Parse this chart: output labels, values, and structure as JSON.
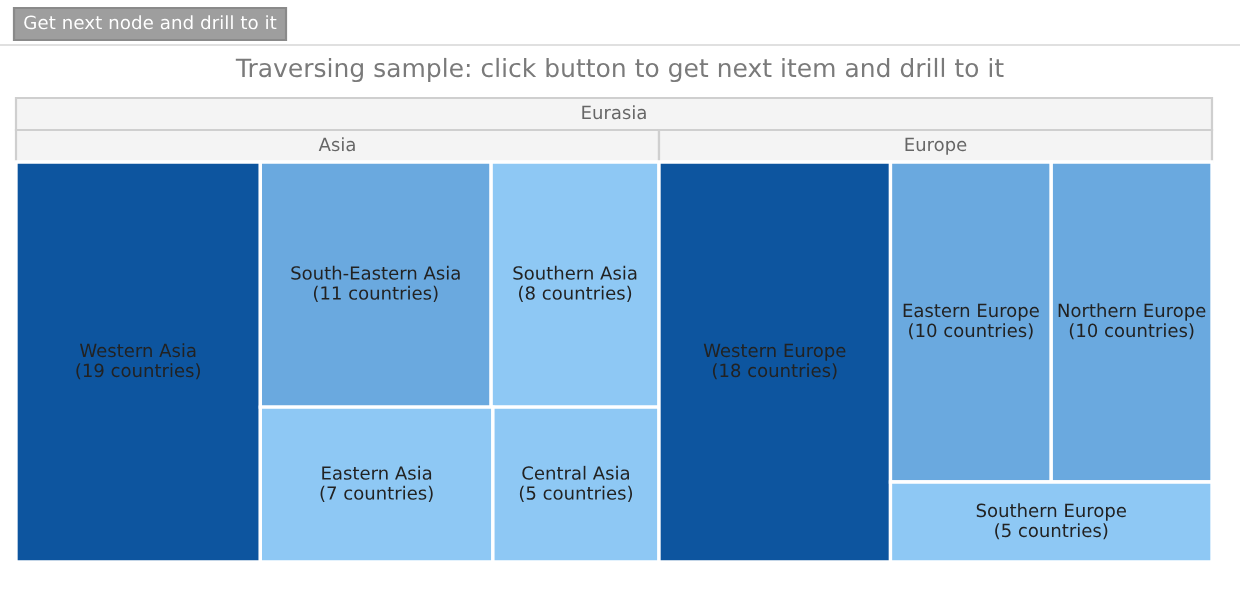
{
  "chart_data": {
    "type": "other",
    "title": "Traversing sample: click button to get next item and drill to it",
    "subtitle": "Eurasia",
    "annotations": [
      "Get next node and drill to it"
    ],
    "categories": [
      "Western Asia",
      "South-Eastern Asia",
      "Southern Asia",
      "Eastern Asia",
      "Central Asia",
      "Western Europe",
      "Eastern Europe",
      "Northern Europe",
      "Southern Europe"
    ],
    "series": [
      {
        "name": "Asia",
        "values": [
          19,
          11,
          8,
          7,
          5,
          null,
          null,
          null,
          null
        ],
        "value_labels": [
          "(19 countries)",
          "(11 countries)",
          "(8 countries)",
          "(7 countries)",
          "(5 countries)",
          null,
          null,
          null,
          null
        ],
        "colors": [
          "#0d559f",
          "#6aa9df",
          "#8ec8f4",
          "#8ec8f4",
          "#8ec8f4",
          null,
          null,
          null,
          null
        ]
      },
      {
        "name": "Europe",
        "values": [
          null,
          null,
          null,
          null,
          null,
          18,
          10,
          10,
          5
        ],
        "value_labels": [
          null,
          null,
          null,
          null,
          null,
          "(18 countries)",
          "(10 countries)",
          "(10 countries)",
          "(5 countries)"
        ],
        "colors": [
          null,
          null,
          null,
          null,
          null,
          "#0d559f",
          "#6aa9df",
          "#6aa9df",
          "#8ec8f4"
        ]
      }
    ]
  }
}
